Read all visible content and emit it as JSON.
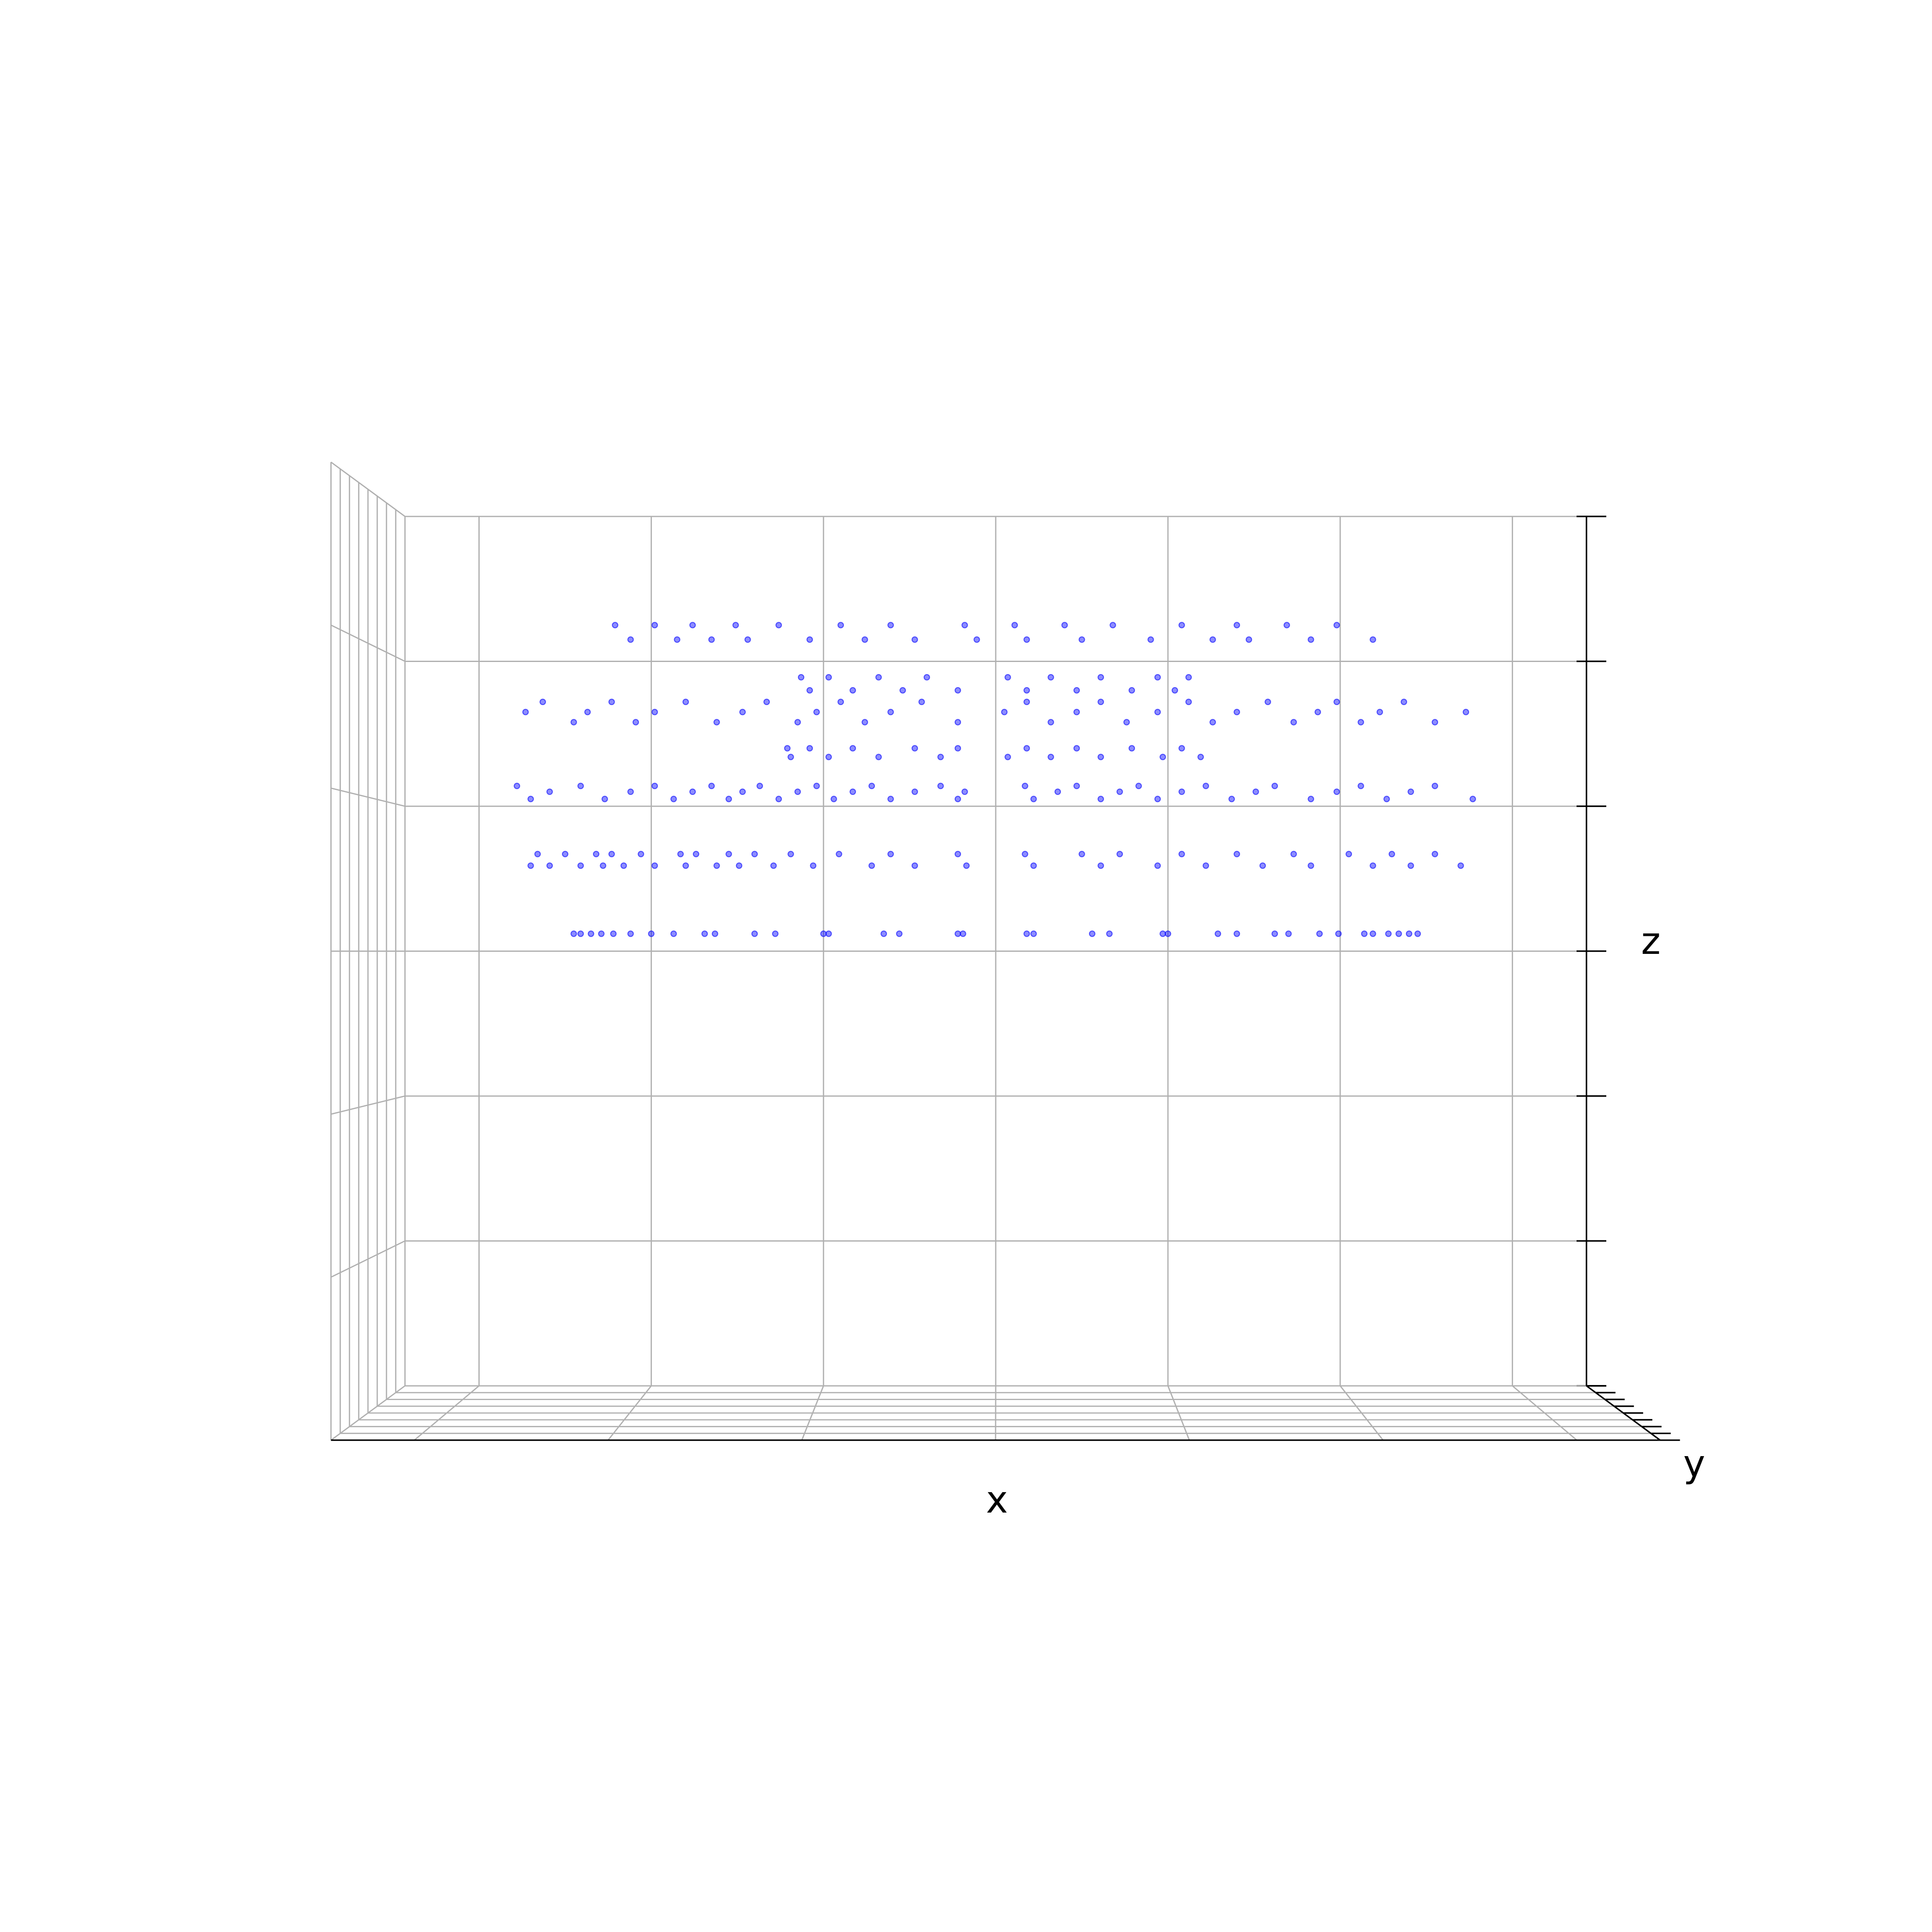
{
  "chart_data": {
    "type": "scatter3d",
    "xlabel": "x",
    "ylabel": "y",
    "zlabel": "z",
    "color": "#0000ff",
    "grid": true,
    "xlim": [
      -3.43,
      3.43
    ],
    "xticks": [
      -3,
      -2,
      -1,
      0,
      1,
      2,
      3
    ],
    "ylim": [
      -4,
      4
    ],
    "yticks": [
      -4,
      -3,
      -2,
      -1,
      0,
      1,
      2,
      3,
      4
    ],
    "zlim": [
      -3,
      3
    ],
    "zticks": [
      -3,
      -2,
      -1,
      0,
      1,
      2,
      3
    ],
    "x": [
      -2.45,
      -2.41,
      -2.35,
      -2.29,
      -2.22,
      -2.12,
      -2.0,
      -1.87,
      -1.69,
      -1.63,
      -1.4,
      -1.28,
      -1.0,
      -0.97,
      -0.65,
      -0.56,
      -0.22,
      -0.19,
      0.18,
      0.22,
      0.56,
      0.66,
      0.97,
      1.0,
      1.29,
      1.4,
      1.62,
      1.7,
      1.88,
      1.99,
      2.14,
      2.19,
      2.28,
      2.34,
      2.4,
      2.45,
      -2.7,
      -2.66,
      -2.59,
      -2.5,
      -2.41,
      -2.32,
      -2.28,
      -2.23,
      -2.16,
      -2.06,
      -1.98,
      -1.83,
      -1.8,
      -1.74,
      -1.62,
      -1.55,
      -1.49,
      -1.4,
      -1.29,
      -1.19,
      -1.06,
      -0.91,
      -0.72,
      -0.61,
      -0.47,
      -0.22,
      -0.17,
      0.17,
      0.22,
      0.5,
      0.61,
      0.72,
      0.94,
      1.08,
      1.22,
      1.4,
      1.55,
      1.73,
      1.83,
      2.05,
      2.19,
      2.3,
      2.41,
      2.55,
      2.7,
      -2.78,
      -2.7,
      -2.59,
      -2.41,
      -2.27,
      -2.12,
      -1.98,
      -1.87,
      -1.76,
      -1.65,
      -1.55,
      -1.47,
      -1.37,
      -1.26,
      -1.15,
      -1.04,
      -0.94,
      -0.83,
      -0.72,
      -0.61,
      -0.47,
      -0.32,
      -0.22,
      -0.18,
      0.17,
      0.22,
      0.36,
      0.47,
      0.61,
      0.72,
      0.83,
      0.94,
      1.08,
      1.22,
      1.37,
      1.51,
      1.62,
      1.83,
      1.98,
      2.12,
      2.27,
      2.41,
      2.55,
      2.77,
      -1.21,
      -1.19,
      -1.08,
      -0.97,
      -0.83,
      -0.68,
      -0.47,
      -0.32,
      -0.22,
      0.07,
      0.18,
      0.32,
      0.47,
      0.61,
      0.79,
      0.97,
      1.08,
      1.19,
      -2.73,
      -2.63,
      -2.45,
      -2.37,
      -2.23,
      -2.09,
      -1.98,
      -1.8,
      -1.62,
      -1.47,
      -1.33,
      -1.15,
      -1.04,
      -0.9,
      -0.76,
      -0.61,
      -0.43,
      -0.22,
      0.05,
      0.18,
      0.32,
      0.47,
      0.61,
      0.76,
      0.94,
      1.12,
      1.26,
      1.4,
      1.58,
      1.73,
      1.87,
      1.98,
      2.12,
      2.23,
      2.37,
      2.55,
      2.73,
      -1.13,
      -1.08,
      -0.97,
      -0.83,
      -0.68,
      -0.54,
      -0.4,
      -0.22,
      0.07,
      0.18,
      0.32,
      0.47,
      0.61,
      0.79,
      0.94,
      1.04,
      1.12,
      -2.21,
      -2.12,
      -1.98,
      -1.85,
      -1.76,
      -1.65,
      -1.51,
      -1.44,
      -1.26,
      -1.08,
      -0.9,
      -0.76,
      -0.61,
      -0.47,
      -0.18,
      -0.11,
      0.11,
      0.18,
      0.4,
      0.5,
      0.68,
      0.9,
      1.08,
      1.26,
      1.4,
      1.47,
      1.69,
      1.83,
      1.98,
      2.19
    ],
    "values": [
      0.12,
      0.12,
      0.12,
      0.12,
      0.12,
      0.12,
      0.12,
      0.12,
      0.12,
      0.12,
      0.12,
      0.12,
      0.12,
      0.12,
      0.12,
      0.12,
      0.12,
      0.12,
      0.12,
      0.12,
      0.12,
      0.12,
      0.12,
      0.12,
      0.12,
      0.12,
      0.12,
      0.12,
      0.12,
      0.12,
      0.12,
      0.12,
      0.12,
      0.12,
      0.12,
      0.12,
      0.59,
      0.67,
      0.59,
      0.67,
      0.59,
      0.67,
      0.59,
      0.67,
      0.59,
      0.67,
      0.59,
      0.67,
      0.59,
      0.67,
      0.59,
      0.67,
      0.59,
      0.67,
      0.59,
      0.67,
      0.59,
      0.67,
      0.59,
      0.67,
      0.59,
      0.67,
      0.59,
      0.67,
      0.59,
      0.67,
      0.59,
      0.67,
      0.59,
      0.67,
      0.59,
      0.67,
      0.59,
      0.67,
      0.59,
      0.67,
      0.59,
      0.67,
      0.59,
      0.67,
      0.59,
      1.14,
      1.05,
      1.1,
      1.14,
      1.05,
      1.1,
      1.14,
      1.05,
      1.1,
      1.14,
      1.05,
      1.1,
      1.14,
      1.05,
      1.1,
      1.14,
      1.05,
      1.1,
      1.14,
      1.05,
      1.1,
      1.14,
      1.05,
      1.1,
      1.14,
      1.05,
      1.1,
      1.14,
      1.05,
      1.1,
      1.14,
      1.05,
      1.1,
      1.14,
      1.05,
      1.1,
      1.14,
      1.05,
      1.1,
      1.14,
      1.05,
      1.1,
      1.14,
      1.05,
      1.4,
      1.34,
      1.4,
      1.34,
      1.4,
      1.34,
      1.4,
      1.34,
      1.4,
      1.34,
      1.4,
      1.34,
      1.4,
      1.34,
      1.4,
      1.34,
      1.4,
      1.34,
      1.65,
      1.72,
      1.58,
      1.65,
      1.72,
      1.58,
      1.65,
      1.72,
      1.58,
      1.65,
      1.72,
      1.58,
      1.65,
      1.72,
      1.58,
      1.65,
      1.72,
      1.58,
      1.65,
      1.72,
      1.58,
      1.65,
      1.72,
      1.58,
      1.65,
      1.72,
      1.58,
      1.65,
      1.72,
      1.58,
      1.65,
      1.72,
      1.58,
      1.65,
      1.72,
      1.58,
      1.65,
      1.89,
      1.8,
      1.89,
      1.8,
      1.89,
      1.8,
      1.89,
      1.8,
      1.89,
      1.8,
      1.89,
      1.8,
      1.89,
      1.8,
      1.89,
      1.8,
      1.89,
      2.25,
      2.15,
      2.25,
      2.15,
      2.25,
      2.15,
      2.25,
      2.15,
      2.25,
      2.15,
      2.25,
      2.15,
      2.25,
      2.15,
      2.25,
      2.15,
      2.25,
      2.15,
      2.25,
      2.15,
      2.25,
      2.15,
      2.25,
      2.15,
      2.25,
      2.15,
      2.25,
      2.15,
      2.25,
      2.15
    ]
  }
}
